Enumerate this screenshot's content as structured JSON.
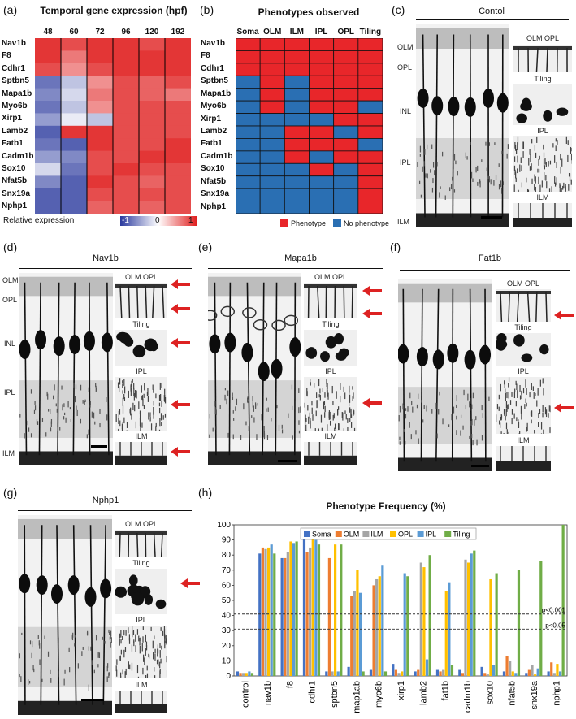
{
  "panels": {
    "a": {
      "label": "(a)",
      "title": "Temporal gene expression (hpf)",
      "timepoints": [
        "48",
        "60",
        "72",
        "96",
        "120",
        "192"
      ],
      "colorbar_label": "Relative expression",
      "colorbar_ticks": [
        "-1",
        "0",
        "1"
      ],
      "heat_low_color": "#2b3a9e",
      "heat_mid_color": "#ffffff",
      "heat_high_color": "#e02020"
    },
    "b": {
      "label": "(b)",
      "title": "Phenotypes observed",
      "columns": [
        "Soma",
        "OLM",
        "ILM",
        "IPL",
        "OPL",
        "Tiling"
      ],
      "legend_phenotype": "Phenotype",
      "legend_no_phenotype": "No phenotype",
      "phenotype_color": "#e8262a",
      "no_phenotype_color": "#2a6fb3"
    },
    "c": {
      "label": "(c)",
      "title": "Contol",
      "layers": [
        "OLM",
        "OPL",
        "INL",
        "IPL",
        "ILM"
      ],
      "insets": [
        "OLM OPL",
        "Tiling",
        "IPL",
        "ILM"
      ]
    },
    "d": {
      "label": "(d)",
      "title": "Nav1b",
      "layers": [
        "OLM",
        "OPL",
        "INL",
        "IPL",
        "ILM"
      ],
      "insets": [
        "OLM OPL",
        "Tiling",
        "IPL",
        "ILM"
      ]
    },
    "e": {
      "label": "(e)",
      "title": "Mapa1b",
      "insets": [
        "OLM OPL",
        "Tiling",
        "IPL",
        "ILM"
      ]
    },
    "f": {
      "label": "(f)",
      "title": "Fat1b",
      "insets": [
        "OLM OPL",
        "Tiling",
        "IPL",
        "ILM"
      ]
    },
    "g": {
      "label": "(g)",
      "title": "Nphp1",
      "insets": [
        "OLM OPL",
        "Tiling",
        "IPL",
        "ILM"
      ]
    },
    "h": {
      "label": "(h)",
      "title": "Phenotype Frequency (%)",
      "sig1": "p<0.001",
      "sig2": "p<0.05"
    }
  },
  "genes": [
    "Nav1b",
    "F8",
    "Cdhr1",
    "Sptbn5",
    "Mapa1b",
    "Myo6b",
    "Xirp1",
    "Lamb2",
    "Fatb1",
    "Cadm1b",
    "Sox10",
    "Nfat5b",
    "Snx19a",
    "Nphp1"
  ],
  "heatmap": [
    [
      0.9,
      0.8,
      0.9,
      0.9,
      0.8,
      0.9
    ],
    [
      0.9,
      0.6,
      0.9,
      0.9,
      0.9,
      0.9
    ],
    [
      0.8,
      0.5,
      0.8,
      0.9,
      0.9,
      0.9
    ],
    [
      -0.7,
      -0.3,
      0.5,
      0.8,
      0.7,
      0.8
    ],
    [
      -0.6,
      -0.2,
      0.6,
      0.8,
      0.7,
      0.6
    ],
    [
      -0.7,
      -0.3,
      0.5,
      0.8,
      0.8,
      0.8
    ],
    [
      -0.5,
      -0.1,
      -0.3,
      0.8,
      0.8,
      0.8
    ],
    [
      -0.8,
      0.9,
      0.9,
      0.8,
      0.8,
      0.8
    ],
    [
      -0.7,
      -0.8,
      0.9,
      0.8,
      0.8,
      0.9
    ],
    [
      -0.5,
      -0.6,
      0.8,
      0.8,
      0.9,
      0.9
    ],
    [
      -0.2,
      -0.7,
      0.8,
      0.9,
      0.8,
      0.8
    ],
    [
      -0.6,
      -0.8,
      0.9,
      0.8,
      0.7,
      0.8
    ],
    [
      -0.8,
      -0.8,
      0.8,
      0.8,
      0.8,
      0.8
    ],
    [
      -0.8,
      -0.8,
      0.7,
      0.8,
      0.7,
      0.8
    ]
  ],
  "phenotype_matrix": [
    [
      1,
      1,
      1,
      1,
      1,
      1
    ],
    [
      1,
      1,
      1,
      1,
      1,
      1
    ],
    [
      1,
      1,
      1,
      1,
      1,
      1
    ],
    [
      0,
      1,
      0,
      1,
      1,
      1
    ],
    [
      0,
      1,
      0,
      1,
      1,
      1
    ],
    [
      0,
      1,
      0,
      1,
      1,
      0
    ],
    [
      0,
      0,
      0,
      0,
      1,
      1
    ],
    [
      0,
      0,
      1,
      1,
      0,
      1
    ],
    [
      0,
      0,
      1,
      1,
      1,
      0
    ],
    [
      0,
      0,
      1,
      0,
      1,
      1
    ],
    [
      0,
      0,
      0,
      1,
      0,
      1
    ],
    [
      0,
      0,
      0,
      0,
      0,
      1
    ],
    [
      0,
      0,
      0,
      0,
      0,
      1
    ],
    [
      0,
      0,
      0,
      0,
      0,
      1
    ]
  ],
  "chart_data": {
    "type": "bar",
    "title": "Phenotype Frequency (%)",
    "categories": [
      "control",
      "nav1b",
      "f8",
      "cdhr1",
      "sptbn5",
      "map1ab",
      "myo6b",
      "xirp1",
      "lamb2",
      "fat1b",
      "cadm1b",
      "sox10",
      "nfat5b",
      "snx19a",
      "nphp1"
    ],
    "series": [
      {
        "name": "Soma",
        "color": "#4472c4",
        "values": [
          3,
          81,
          78,
          92,
          3,
          6,
          4,
          8,
          3,
          4,
          4,
          6,
          3,
          2,
          3
        ]
      },
      {
        "name": "OLM",
        "color": "#ed7d31",
        "values": [
          2,
          85,
          78,
          82,
          78,
          53,
          60,
          4,
          4,
          3,
          2,
          2,
          13,
          4,
          9
        ]
      },
      {
        "name": "ILM",
        "color": "#a5a5a5",
        "values": [
          2,
          84,
          82,
          85,
          3,
          56,
          64,
          2,
          75,
          4,
          77,
          1,
          10,
          7,
          2
        ]
      },
      {
        "name": "OPL",
        "color": "#ffc000",
        "values": [
          2,
          85,
          89,
          92,
          87,
          70,
          66,
          3,
          72,
          56,
          75,
          64,
          3,
          1,
          8
        ]
      },
      {
        "name": "IPL",
        "color": "#5b9bd5",
        "values": [
          3,
          87,
          88,
          90,
          3,
          55,
          73,
          68,
          11,
          62,
          81,
          7,
          2,
          5,
          3
        ]
      },
      {
        "name": "Tiling",
        "color": "#70ad47",
        "values": [
          2,
          81,
          89,
          87,
          87,
          3,
          3,
          66,
          80,
          7,
          83,
          68,
          70,
          76,
          100
        ]
      }
    ],
    "ylim": [
      0,
      100
    ],
    "yticks": [
      0,
      10,
      20,
      30,
      40,
      50,
      60,
      70,
      80,
      90,
      100
    ],
    "thresholds": [
      {
        "label": "p<0.001",
        "value": 41
      },
      {
        "label": "p<0.05",
        "value": 31
      }
    ]
  }
}
